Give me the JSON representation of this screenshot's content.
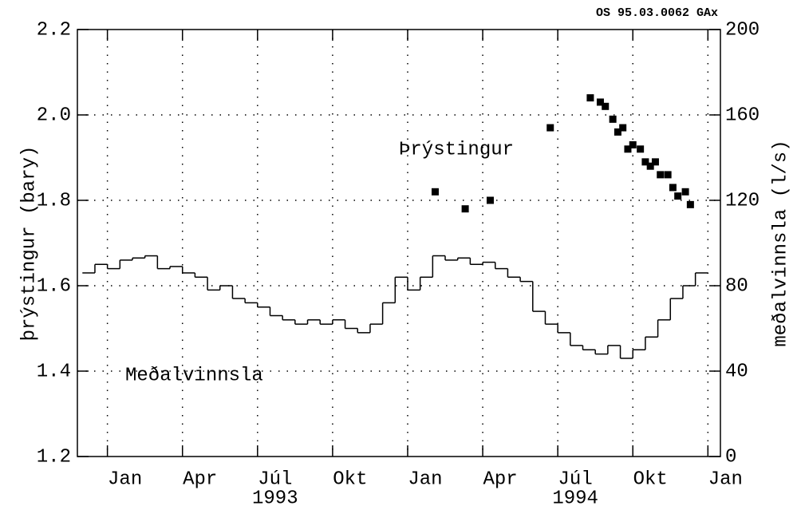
{
  "chart_data": {
    "type": "scatter",
    "annotation": "OS 95.03.0062 GAx",
    "ylabel": "þrýstingur (bary)",
    "y2label": "meðalvinnsla (l/s)",
    "xlim": [
      -1.2,
      24.5
    ],
    "xticks": [
      {
        "value": 0,
        "label": "Jan"
      },
      {
        "value": 3,
        "label": "Apr"
      },
      {
        "value": 6,
        "label": "Júl"
      },
      {
        "value": 9,
        "label": "Okt"
      },
      {
        "value": 12,
        "label": "Jan"
      },
      {
        "value": 15,
        "label": "Apr"
      },
      {
        "value": 18,
        "label": "Júl"
      },
      {
        "value": 21,
        "label": "Okt"
      },
      {
        "value": 24,
        "label": "Jan"
      }
    ],
    "year_labels": [
      {
        "value": 6,
        "label": "1993"
      },
      {
        "value": 18,
        "label": "1994"
      }
    ],
    "ylim": [
      1.2,
      2.2
    ],
    "yticks": [
      1.2,
      1.4,
      1.6,
      1.8,
      {
        "value": 2,
        "label": "2.0"
      },
      2.2
    ],
    "y2lim": [
      0,
      200
    ],
    "y2ticks": [
      0,
      40,
      80,
      120,
      160,
      200
    ],
    "grid": true,
    "series": [
      {
        "name": "Þrýstingur",
        "type": "scatter",
        "color": "#000000",
        "x": [
          13.1,
          14.3,
          15.3,
          17.7,
          19.3,
          19.7,
          19.9,
          20.2,
          20.4,
          20.6,
          20.8,
          21.0,
          21.3,
          21.5,
          21.7,
          21.9,
          22.1,
          22.4,
          22.6,
          22.8,
          23.1,
          23.3
        ],
        "values": [
          1.82,
          1.78,
          1.8,
          1.97,
          2.04,
          2.03,
          2.02,
          1.99,
          1.96,
          1.97,
          1.92,
          1.93,
          1.92,
          1.89,
          1.88,
          1.89,
          1.86,
          1.86,
          1.83,
          1.81,
          1.82,
          1.79
        ]
      },
      {
        "name": "Meðalvinnsla",
        "type": "step",
        "axis": "y2",
        "color": "#000000",
        "bins": [
          -1.0,
          -0.5,
          0,
          0.5,
          1.0,
          1.5,
          2.0,
          2.5,
          3.0,
          3.5,
          4.0,
          4.5,
          5.0,
          5.5,
          6.0,
          6.5,
          7.0,
          7.5,
          8.0,
          8.5,
          9.0,
          9.5,
          10.0,
          10.5,
          11.0,
          11.5,
          12.0,
          12.5,
          13.0,
          13.5,
          14.0,
          14.5,
          15.0,
          15.5,
          16.0,
          16.5,
          17.0,
          17.5,
          18.0,
          18.5,
          19.0,
          19.5,
          20.0,
          20.5,
          21.0,
          21.5,
          22.0,
          22.5,
          23.0,
          23.5,
          24.0
        ],
        "values": [
          86,
          90,
          88,
          92,
          93,
          94,
          88,
          89,
          86,
          84,
          78,
          80,
          74,
          72,
          70,
          66,
          64,
          62,
          64,
          62,
          64,
          60,
          58,
          62,
          72,
          84,
          78,
          84,
          94,
          92,
          93,
          90,
          91,
          88,
          84,
          82,
          68,
          62,
          58,
          52,
          50,
          48,
          52,
          46,
          50,
          56,
          64,
          74,
          80,
          86
        ]
      }
    ]
  }
}
